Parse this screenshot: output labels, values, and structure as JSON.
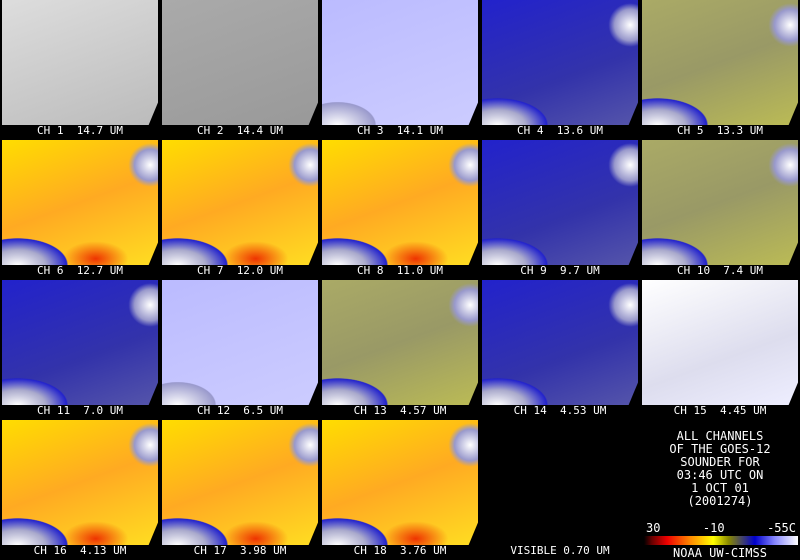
{
  "panels": [
    {
      "label": "CH 1  14.7 UM"
    },
    {
      "label": "CH 2  14.4 UM"
    },
    {
      "label": "CH 3  14.1 UM"
    },
    {
      "label": "CH 4  13.6 UM"
    },
    {
      "label": "CH 5  13.3 UM"
    },
    {
      "label": "CH 6  12.7 UM"
    },
    {
      "label": "CH 7  12.0 UM"
    },
    {
      "label": "CH 8  11.0 UM"
    },
    {
      "label": "CH 9  9.7 UM"
    },
    {
      "label": "CH 10  7.4 UM"
    },
    {
      "label": "CH 11  7.0 UM"
    },
    {
      "label": "CH 12  6.5 UM"
    },
    {
      "label": "CH 13  4.57 UM"
    },
    {
      "label": "CH 14  4.53 UM"
    },
    {
      "label": "CH 15  4.45 UM"
    },
    {
      "label": "CH 16  4.13 UM"
    },
    {
      "label": "CH 17  3.98 UM"
    },
    {
      "label": "CH 18  3.76 UM"
    },
    {
      "label": "VISIBLE 0.70 UM"
    }
  ],
  "info": {
    "lines": [
      "ALL CHANNELS",
      "OF THE GOES-12",
      "SOUNDER FOR",
      "03:46 UTC ON",
      "1 OCT 01",
      "(2001274)"
    ],
    "scale_labels": [
      "30",
      "-10",
      "-55C"
    ],
    "credit": "NOAA UW-CIMSS"
  }
}
